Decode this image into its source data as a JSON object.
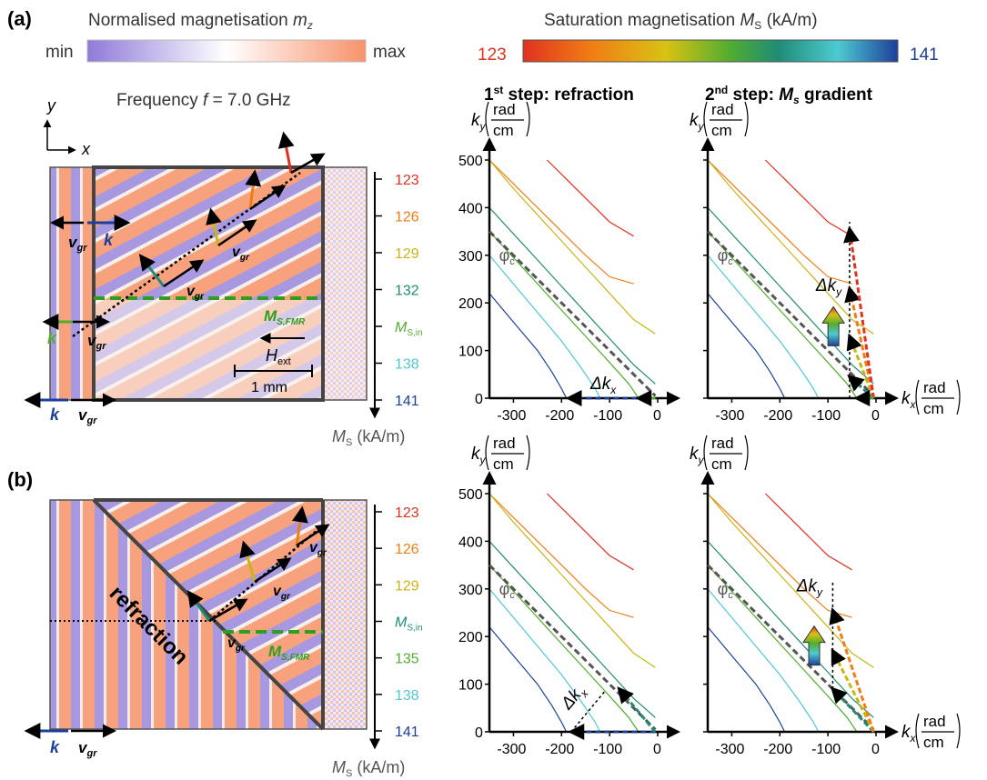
{
  "figure": {
    "panel_a": "(a)",
    "panel_b": "(b)",
    "colorbar_mz": {
      "title": "Normalised magnetisation",
      "symbol": "m",
      "symbol_sub": "z",
      "min_label": "min",
      "max_label": "max",
      "colors": [
        "#8f7ad9",
        "#ffffff",
        "#f7926a"
      ]
    },
    "colorbar_ms": {
      "title": "Saturation magnetisation",
      "symbol": "M",
      "symbol_sub": "S",
      "unit": "(kA/m)",
      "min_label": "123",
      "max_label": "141",
      "colors": [
        "#e0321f",
        "#f07d14",
        "#d9c214",
        "#52ad2e",
        "#1f8c74",
        "#4fc9d2",
        "#1c3f99"
      ]
    },
    "frequency_label": {
      "prefix": "Frequency ",
      "symbol": "f",
      "suffix": " = 7.0 GHz"
    },
    "axes_xy": {
      "x": "x",
      "y": "y"
    },
    "column_titles": {
      "step1_prefix": "1",
      "step1_sup": "st",
      "step1_text": " step: refraction",
      "step2_prefix": "2",
      "step2_sup": "nd",
      "step2_text": " step: ",
      "step2_symbol": "M",
      "step2_sub": "s",
      "step2_suffix": " gradient"
    },
    "scale_a": {
      "ticks": [
        "123",
        "126",
        "129",
        "132",
        "MS,in",
        "138",
        "141"
      ],
      "tick_colors": [
        "#e0321f",
        "#f07d14",
        "#c9b514",
        "#1f8c74",
        "#52ad2e",
        "#4fc9d2",
        "#1c3f99"
      ],
      "unit": "(kA/m)",
      "symbol": "M",
      "sub": "S"
    },
    "scale_b": {
      "ticks": [
        "123",
        "126",
        "129",
        "MS,in",
        "135",
        "138",
        "141"
      ],
      "tick_colors": [
        "#e0321f",
        "#f07d14",
        "#c9b514",
        "#1f8c74",
        "#52ad2e",
        "#4fc9d2",
        "#1c3f99"
      ]
    },
    "sim_a": {
      "vgr": "v",
      "vgr_sub": "gr",
      "k": "k",
      "msfmr": "M",
      "msfmr_sub": "S,FMR",
      "hext": "H",
      "hext_sub": "ext",
      "scalebar": "1 mm"
    },
    "sim_b": {
      "refraction": "refraction"
    },
    "dispersion": {
      "ky_label": "k",
      "ky_sub": "y",
      "kx_label": "k",
      "kx_sub": "x",
      "unit_num": "rad",
      "unit_den": "cm",
      "phi": "φ",
      "phi_sub": "c",
      "dkx": "Δk",
      "dkx_sub": "x",
      "dky": "Δk",
      "dky_sub": "y"
    }
  },
  "chart_data": [
    {
      "type": "line",
      "title": "1st step: refraction",
      "panel": "a",
      "xlabel": "kx (rad/cm)",
      "ylabel": "ky (rad/cm)",
      "xlim": [
        -350,
        0
      ],
      "ylim": [
        0,
        500
      ],
      "xticks": [
        "-300",
        "-200",
        "-100",
        "0"
      ],
      "yticks": [
        "0",
        "100",
        "200",
        "300",
        "400",
        "500"
      ],
      "series": [
        {
          "color": "#e0321f",
          "x": [
            -230,
            -200,
            -150,
            -100,
            -50
          ],
          "y": [
            500,
            470,
            420,
            370,
            340
          ]
        },
        {
          "color": "#f07d14",
          "x": [
            -350,
            -300,
            -250,
            -200,
            -150,
            -100,
            -50
          ],
          "y": [
            500,
            450,
            400,
            350,
            300,
            255,
            240
          ]
        },
        {
          "color": "#c9b514",
          "x": [
            -350,
            -300,
            -250,
            -200,
            -150,
            -100,
            -50,
            -5
          ],
          "y": [
            500,
            440,
            385,
            330,
            275,
            220,
            165,
            135
          ]
        },
        {
          "color": "#1f8c74",
          "x": [
            -350,
            -300,
            -250,
            -200,
            -150,
            -100,
            -50,
            -5
          ],
          "y": [
            400,
            345,
            290,
            235,
            180,
            125,
            70,
            30
          ]
        },
        {
          "color": "#52ad2e",
          "x": [
            -350,
            -300,
            -250,
            -200,
            -150,
            -100,
            -60,
            -40
          ],
          "y": [
            350,
            295,
            240,
            185,
            130,
            75,
            30,
            0
          ]
        },
        {
          "color": "#4fc9d2",
          "x": [
            -350,
            -300,
            -250,
            -200,
            -160,
            -130,
            -120
          ],
          "y": [
            300,
            240,
            180,
            120,
            65,
            20,
            0
          ]
        },
        {
          "color": "#1c3f99",
          "x": [
            -350,
            -300,
            -250,
            -220,
            -200,
            -190
          ],
          "y": [
            220,
            160,
            100,
            55,
            20,
            0
          ]
        }
      ]
    },
    {
      "type": "line",
      "title": "2nd step: Ms gradient",
      "panel": "a",
      "xlabel": "kx (rad/cm)",
      "ylabel": "ky (rad/cm)",
      "xlim": [
        -350,
        0
      ],
      "ylim": [
        0,
        500
      ],
      "xticks": [
        "-300",
        "-200",
        "-100",
        "0"
      ],
      "yticks": []
    },
    {
      "type": "line",
      "title": "1st step: refraction",
      "panel": "b",
      "xlabel": "kx (rad/cm)",
      "ylabel": "ky (rad/cm)",
      "xlim": [
        -350,
        0
      ],
      "ylim": [
        0,
        500
      ],
      "xticks": [
        "-300",
        "-200",
        "-100",
        "0"
      ],
      "yticks": [
        "0",
        "100",
        "200",
        "300",
        "400",
        "500"
      ]
    },
    {
      "type": "line",
      "title": "2nd step: Ms gradient",
      "panel": "b",
      "xlabel": "kx (rad/cm)",
      "ylabel": "ky (rad/cm)",
      "xlim": [
        -350,
        0
      ],
      "ylim": [
        0,
        500
      ],
      "xticks": [
        "-300",
        "-200",
        "-100",
        "0"
      ],
      "yticks": []
    }
  ]
}
